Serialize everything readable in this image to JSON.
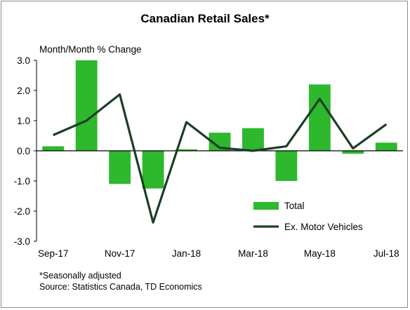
{
  "chart_data": {
    "type": "bar",
    "title": "Canadian Retail Sales*",
    "ylabel": "Month/Month % Change",
    "ylim": [
      -3.0,
      3.0
    ],
    "yticks": [
      3.0,
      2.0,
      1.0,
      0.0,
      -1.0,
      -2.0,
      -3.0
    ],
    "ytick_labels": [
      "3.0",
      "2.0",
      "1.0",
      "0.0",
      "-1.0",
      "-2.0",
      "-3.0"
    ],
    "categories": [
      "Sep-17",
      "Oct-17",
      "Nov-17",
      "Dec-17",
      "Jan-18",
      "Feb-18",
      "Mar-18",
      "Apr-18",
      "May-18",
      "Jun-18",
      "Jul-18"
    ],
    "xtick_labels": [
      "Sep-17",
      "",
      "Nov-17",
      "",
      "Jan-18",
      "",
      "Mar-18",
      "",
      "May-18",
      "",
      "Jul-18"
    ],
    "series": [
      {
        "name": "Total",
        "kind": "bar",
        "color": "#2db82d",
        "values": [
          0.15,
          3.0,
          -1.1,
          -1.25,
          0.05,
          0.6,
          0.75,
          -1.0,
          2.2,
          -0.1,
          0.27
        ]
      },
      {
        "name": "Ex. Motor Vehicles",
        "kind": "line",
        "color": "#1d3d27",
        "values": [
          0.52,
          1.0,
          1.87,
          -2.38,
          0.95,
          0.1,
          0.0,
          0.15,
          1.72,
          0.08,
          0.88
        ]
      }
    ],
    "legend_position": "bottom-right",
    "grid": false
  },
  "footnotes": {
    "adjustment": "*Seasonally adjusted",
    "source": "Source: Statistics Canada, TD Economics"
  }
}
